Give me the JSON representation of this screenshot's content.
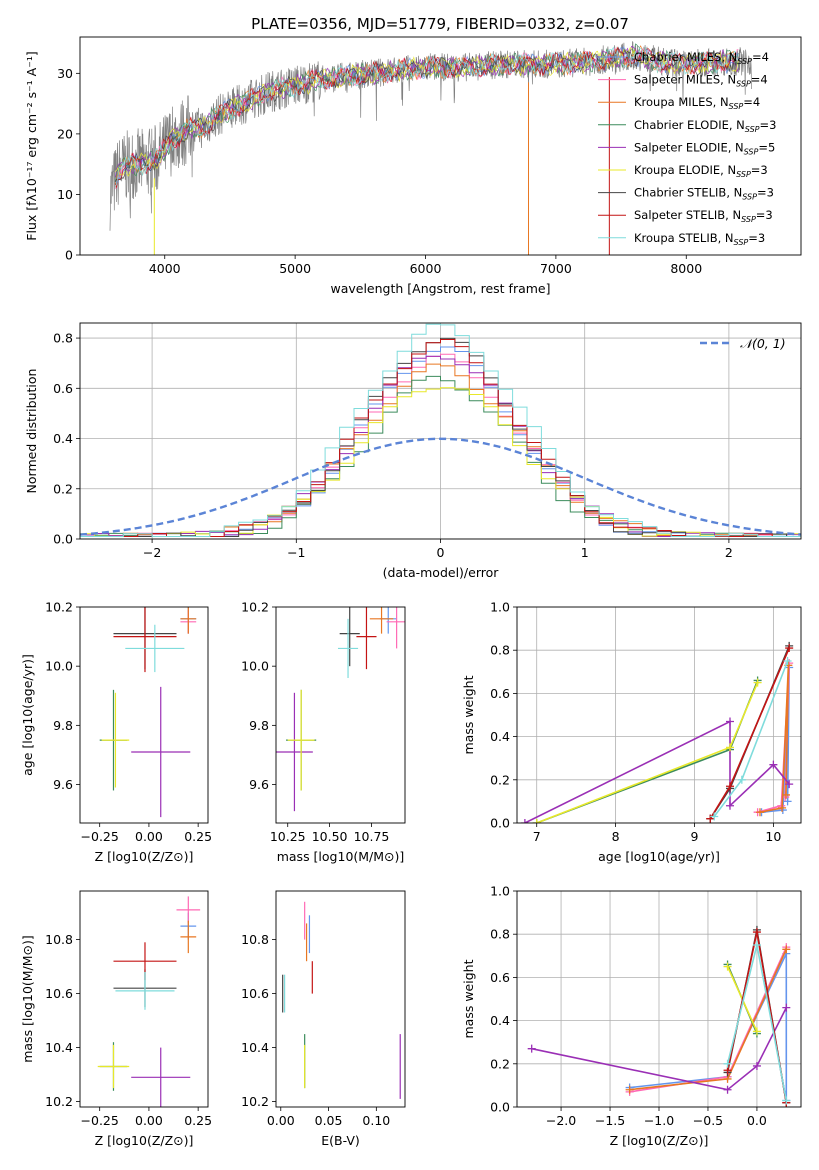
{
  "figure_title": "PLATE=0356, MJD=51779, FIBERID=0332, z=0.07",
  "colors": {
    "Chabrier MILES": "#6495ed",
    "Salpeter MILES": "#ff69b4",
    "Kroupa MILES": "#e87722",
    "Chabrier ELODIE": "#3c8c5c",
    "Salpeter ELODIE": "#9a2fb5",
    "Kroupa ELODIE": "#e8e82a",
    "Chabrier STELIB": "#444444",
    "Salpeter STELIB": "#c41414",
    "Kroupa STELIB": "#7fdcdc",
    "data": "#808080",
    "normal": "#5b84d6",
    "green": "#5aaa3c",
    "lime": "#b4e05a"
  },
  "chart_data": [
    {
      "type": "line",
      "id": "spectrum",
      "title": "PLATE=0356, MJD=51779, FIBERID=0332, z=0.07",
      "xlabel": "wavelength [Angstrom, rest frame]",
      "ylabel": "Flux [fλ10⁻¹⁷ erg cm⁻² s⁻¹ A⁻¹]",
      "xlim": [
        3350,
        8880
      ],
      "ylim": [
        0,
        36
      ],
      "xticks": [
        4000,
        5000,
        6000,
        7000,
        8000
      ],
      "yticks": [
        0,
        10,
        20,
        30
      ],
      "legend": [
        "Chabrier MILES, N_SSP=4",
        "Salpeter MILES, N_SSP=4",
        "Kroupa MILES, N_SSP=4",
        "Chabrier ELODIE, N_SSP=3",
        "Salpeter ELODIE, N_SSP=5",
        "Kroupa ELODIE, N_SSP=3",
        "Chabrier STELIB, N_SSP=3",
        "Salpeter STELIB, N_SSP=3",
        "Kroupa STELIB, N_SSP=3"
      ],
      "legend_position": "right",
      "continuum": [
        [
          3580,
          10
        ],
        [
          3650,
          14
        ],
        [
          3750,
          15
        ],
        [
          3850,
          15
        ],
        [
          3950,
          16
        ],
        [
          4050,
          19
        ],
        [
          4200,
          21
        ],
        [
          4300,
          21
        ],
        [
          4400,
          23
        ],
        [
          4600,
          25
        ],
        [
          4800,
          27
        ],
        [
          5000,
          28
        ],
        [
          5200,
          29
        ],
        [
          5400,
          29.5
        ],
        [
          5600,
          30
        ],
        [
          5800,
          30.5
        ],
        [
          6000,
          31
        ],
        [
          6300,
          31
        ],
        [
          6600,
          31.5
        ],
        [
          7000,
          31.5
        ],
        [
          7300,
          32
        ],
        [
          7600,
          33
        ],
        [
          7800,
          32
        ],
        [
          8000,
          31.5
        ],
        [
          8300,
          32
        ],
        [
          8500,
          32
        ]
      ]
    },
    {
      "type": "line",
      "id": "residuals",
      "xlabel": "(data-model)/error",
      "ylabel": "Normed distribution",
      "xlim": [
        -2.5,
        2.5
      ],
      "ylim": [
        0,
        0.86
      ],
      "xticks": [
        -2,
        -1,
        0,
        1,
        2
      ],
      "yticks": [
        0.0,
        0.2,
        0.4,
        0.6,
        0.8
      ],
      "legend": [
        "𝒩(0, 1)"
      ],
      "legend_position": "top-right",
      "grid": true
    },
    {
      "type": "scatter",
      "id": "age_vs_Z",
      "xlabel": "Z [log10(Z/Z⊙)]",
      "ylabel": "age [log10(age/yr)]",
      "xlim": [
        -0.35,
        0.3
      ],
      "ylim": [
        9.47,
        10.2
      ],
      "xticks": [
        -0.25,
        0.0,
        0.25
      ],
      "yticks": [
        9.6,
        9.8,
        10.0,
        10.2
      ],
      "points": [
        {
          "model": "Chabrier MILES",
          "x": 0.2,
          "y": 10.16,
          "xerr": 0.04,
          "yerr": 0.05
        },
        {
          "model": "Salpeter MILES",
          "x": 0.2,
          "y": 10.15,
          "xerr": 0.04,
          "yerr": 0.04
        },
        {
          "model": "Kroupa MILES",
          "x": 0.2,
          "y": 10.16,
          "xerr": 0.04,
          "yerr": 0.05
        },
        {
          "model": "Chabrier ELODIE",
          "x": -0.18,
          "y": 9.75,
          "xerr": 0.07,
          "yerr": 0.17
        },
        {
          "model": "Salpeter ELODIE",
          "x": 0.06,
          "y": 9.71,
          "xerr": 0.15,
          "yerr": 0.22
        },
        {
          "model": "Kroupa ELODIE",
          "x": -0.17,
          "y": 9.75,
          "xerr": 0.07,
          "yerr": 0.16
        },
        {
          "model": "Chabrier STELIB",
          "x": -0.02,
          "y": 10.11,
          "xerr": 0.16,
          "yerr": 0.12
        },
        {
          "model": "Salpeter STELIB",
          "x": -0.02,
          "y": 10.1,
          "xerr": 0.16,
          "yerr": 0.12
        },
        {
          "model": "Kroupa STELIB",
          "x": 0.03,
          "y": 10.06,
          "xerr": 0.15,
          "yerr": 0.08
        }
      ]
    },
    {
      "type": "scatter",
      "id": "age_vs_mass",
      "xlabel": "mass [log10(M/M⊙)]",
      "ylabel": "",
      "xlim": [
        10.18,
        10.95
      ],
      "ylim": [
        9.47,
        10.2
      ],
      "xticks": [
        10.25,
        10.5,
        10.75
      ],
      "yticks": [
        9.6,
        9.8,
        10.0,
        10.2
      ],
      "points": [
        {
          "model": "Chabrier MILES",
          "x": 10.85,
          "y": 10.16,
          "xerr": 0.05,
          "yerr": 0.05
        },
        {
          "model": "Salpeter MILES",
          "x": 10.9,
          "y": 10.15,
          "xerr": 0.06,
          "yerr": 0.09
        },
        {
          "model": "Kroupa MILES",
          "x": 10.81,
          "y": 10.16,
          "xerr": 0.07,
          "yerr": 0.05
        },
        {
          "model": "Chabrier ELODIE",
          "x": 10.33,
          "y": 9.75,
          "xerr": 0.09,
          "yerr": 0.17
        },
        {
          "model": "Salpeter ELODIE",
          "x": 10.29,
          "y": 9.71,
          "xerr": 0.11,
          "yerr": 0.2
        },
        {
          "model": "Kroupa ELODIE",
          "x": 10.33,
          "y": 9.75,
          "xerr": 0.08,
          "yerr": 0.17
        },
        {
          "model": "Chabrier STELIB",
          "x": 10.62,
          "y": 10.11,
          "xerr": 0.06,
          "yerr": 0.11
        },
        {
          "model": "Salpeter STELIB",
          "x": 10.72,
          "y": 10.1,
          "xerr": 0.06,
          "yerr": 0.11
        },
        {
          "model": "Kroupa STELIB",
          "x": 10.61,
          "y": 10.06,
          "xerr": 0.06,
          "yerr": 0.1
        }
      ]
    },
    {
      "type": "line",
      "id": "weight_vs_age",
      "xlabel": "age [log10(age/yr)]",
      "ylabel": "mass weight",
      "xlim": [
        6.75,
        10.35
      ],
      "ylim": [
        0.0,
        1.0
      ],
      "xticks": [
        7,
        8,
        9,
        10
      ],
      "yticks": [
        0.0,
        0.2,
        0.4,
        0.6,
        0.8,
        1.0
      ],
      "grid": true,
      "series": [
        {
          "model": "Chabrier MILES",
          "x": [
            9.85,
            10.12,
            10.2,
            10.18
          ],
          "y": [
            0.05,
            0.06,
            0.72,
            0.1
          ]
        },
        {
          "model": "Salpeter MILES",
          "x": [
            9.8,
            10.1,
            10.2,
            10.15
          ],
          "y": [
            0.05,
            0.08,
            0.74,
            0.12
          ]
        },
        {
          "model": "Kroupa MILES",
          "x": [
            9.83,
            10.11,
            10.19,
            10.16
          ],
          "y": [
            0.05,
            0.07,
            0.73,
            0.13
          ]
        },
        {
          "model": "Chabrier ELODIE",
          "x": [
            7.0,
            9.45,
            9.8
          ],
          "y": [
            0.0,
            0.34,
            0.66
          ]
        },
        {
          "model": "Salpeter ELODIE",
          "x": [
            6.85,
            9.45,
            9.45,
            10.0,
            10.2
          ],
          "y": [
            0.0,
            0.47,
            0.08,
            0.27,
            0.18
          ]
        },
        {
          "model": "Kroupa ELODIE",
          "x": [
            7.0,
            9.45,
            9.8
          ],
          "y": [
            0.0,
            0.35,
            0.65
          ]
        },
        {
          "model": "Chabrier STELIB",
          "x": [
            9.2,
            9.45,
            10.2
          ],
          "y": [
            0.02,
            0.16,
            0.82
          ]
        },
        {
          "model": "Salpeter STELIB",
          "x": [
            9.2,
            9.45,
            10.2
          ],
          "y": [
            0.02,
            0.17,
            0.81
          ]
        },
        {
          "model": "Kroupa STELIB",
          "x": [
            9.25,
            9.6,
            10.18
          ],
          "y": [
            0.03,
            0.2,
            0.75
          ]
        }
      ]
    },
    {
      "type": "scatter",
      "id": "mass_vs_Z",
      "xlabel": "Z [log10(Z/Z⊙)]",
      "ylabel": "mass [log10(M/M⊙)]",
      "xlim": [
        -0.35,
        0.3
      ],
      "ylim": [
        10.18,
        10.98
      ],
      "xticks": [
        -0.25,
        0.0,
        0.25
      ],
      "yticks": [
        10.2,
        10.4,
        10.6,
        10.8
      ],
      "points": [
        {
          "model": "Chabrier MILES",
          "x": 0.2,
          "y": 10.85,
          "xerr": 0.04,
          "yerr": 0.05
        },
        {
          "model": "Salpeter MILES",
          "x": 0.2,
          "y": 10.91,
          "xerr": 0.06,
          "yerr": 0.05
        },
        {
          "model": "Kroupa MILES",
          "x": 0.2,
          "y": 10.81,
          "xerr": 0.04,
          "yerr": 0.06
        },
        {
          "model": "Chabrier ELODIE",
          "x": -0.18,
          "y": 10.33,
          "xerr": 0.07,
          "yerr": 0.09
        },
        {
          "model": "Salpeter ELODIE",
          "x": 0.06,
          "y": 10.29,
          "xerr": 0.15,
          "yerr": 0.11
        },
        {
          "model": "Kroupa ELODIE",
          "x": -0.18,
          "y": 10.33,
          "xerr": 0.08,
          "yerr": 0.08
        },
        {
          "model": "Chabrier STELIB",
          "x": -0.02,
          "y": 10.62,
          "xerr": 0.16,
          "yerr": 0.07
        },
        {
          "model": "Salpeter STELIB",
          "x": -0.02,
          "y": 10.72,
          "xerr": 0.16,
          "yerr": 0.07
        },
        {
          "model": "Kroupa STELIB",
          "x": -0.02,
          "y": 10.61,
          "xerr": 0.15,
          "yerr": 0.07
        }
      ]
    },
    {
      "type": "scatter",
      "id": "mass_vs_EBV",
      "xlabel": "E(B-V)",
      "ylabel": "",
      "xlim": [
        -0.005,
        0.13
      ],
      "ylim": [
        10.18,
        10.98
      ],
      "xticks": [
        0.0,
        0.05,
        0.1
      ],
      "yticks": [
        10.2,
        10.4,
        10.6,
        10.8
      ],
      "points": [
        {
          "model": "Chabrier MILES",
          "x": 0.03,
          "y": 10.82,
          "xerr": 0.0,
          "yerr": 0.07
        },
        {
          "model": "Salpeter MILES",
          "x": 0.025,
          "y": 10.87,
          "xerr": 0.0,
          "yerr": 0.07
        },
        {
          "model": "Kroupa MILES",
          "x": 0.027,
          "y": 10.79,
          "xerr": 0.0,
          "yerr": 0.07
        },
        {
          "model": "Chabrier ELODIE",
          "x": 0.025,
          "y": 10.35,
          "xerr": 0.0,
          "yerr": 0.1
        },
        {
          "model": "Salpeter ELODIE",
          "x": 0.125,
          "y": 10.33,
          "xerr": 0.0,
          "yerr": 0.12
        },
        {
          "model": "Kroupa ELODIE",
          "x": 0.025,
          "y": 10.33,
          "xerr": 0.0,
          "yerr": 0.08
        },
        {
          "model": "Chabrier STELIB",
          "x": 0.002,
          "y": 10.6,
          "xerr": 0.0,
          "yerr": 0.07
        },
        {
          "model": "Salpeter STELIB",
          "x": 0.033,
          "y": 10.66,
          "xerr": 0.0,
          "yerr": 0.06
        },
        {
          "model": "Kroupa STELIB",
          "x": 0.004,
          "y": 10.6,
          "xerr": 0.0,
          "yerr": 0.07
        }
      ]
    },
    {
      "type": "line",
      "id": "weight_vs_Z",
      "xlabel": "Z [log10(Z/Z⊙)]",
      "ylabel": "mass weight",
      "xlim": [
        -2.45,
        0.45
      ],
      "ylim": [
        0.0,
        1.0
      ],
      "xticks": [
        -2.0,
        -1.5,
        -1.0,
        -0.5,
        0.0
      ],
      "yticks": [
        0.0,
        0.2,
        0.4,
        0.6,
        0.8,
        1.0
      ],
      "grid": true,
      "series": [
        {
          "model": "Chabrier MILES",
          "x": [
            -1.3,
            -0.3,
            0.3,
            0.3
          ],
          "y": [
            0.09,
            0.14,
            0.71,
            0.03
          ]
        },
        {
          "model": "Salpeter MILES",
          "x": [
            -1.3,
            -0.3,
            0.3
          ],
          "y": [
            0.07,
            0.14,
            0.74
          ]
        },
        {
          "model": "Kroupa MILES",
          "x": [
            -1.3,
            -0.3,
            0.3
          ],
          "y": [
            0.08,
            0.13,
            0.73
          ]
        },
        {
          "model": "Chabrier ELODIE",
          "x": [
            -0.3,
            0.0
          ],
          "y": [
            0.66,
            0.34
          ]
        },
        {
          "model": "Salpeter ELODIE",
          "x": [
            -2.3,
            -0.3,
            0.0,
            0.3
          ],
          "y": [
            0.27,
            0.08,
            0.19,
            0.46
          ]
        },
        {
          "model": "Kroupa ELODIE",
          "x": [
            -0.3,
            0.0
          ],
          "y": [
            0.65,
            0.35
          ]
        },
        {
          "model": "Chabrier STELIB",
          "x": [
            -0.3,
            0.0,
            0.3
          ],
          "y": [
            0.16,
            0.82,
            0.02
          ]
        },
        {
          "model": "Salpeter STELIB",
          "x": [
            -0.3,
            0.0,
            0.3
          ],
          "y": [
            0.17,
            0.81,
            0.02
          ]
        },
        {
          "model": "Kroupa STELIB",
          "x": [
            -0.3,
            0.0,
            0.3
          ],
          "y": [
            0.2,
            0.75,
            0.03
          ]
        }
      ]
    }
  ]
}
